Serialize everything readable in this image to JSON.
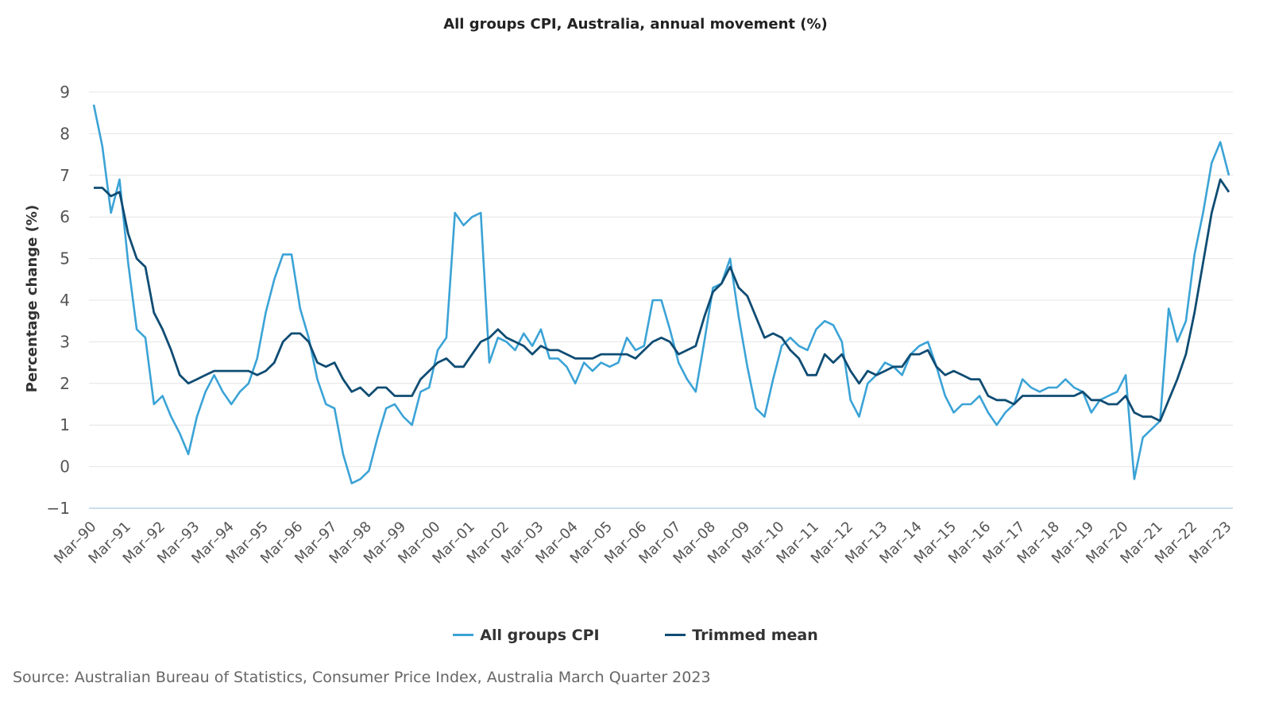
{
  "chart_data": {
    "type": "line",
    "title": "All groups CPI, Australia, annual movement (%)",
    "ylabel": "Percentage change (%)",
    "xlabel": "",
    "ylim": [
      -1,
      9
    ],
    "y_ticks": [
      "9",
      "8",
      "7",
      "6",
      "5",
      "4",
      "3",
      "2",
      "1",
      "0",
      "−1"
    ],
    "x_tick_labels": [
      "Mar–90",
      "Mar–91",
      "Mar–92",
      "Mar–93",
      "Mar–94",
      "Mar–95",
      "Mar–96",
      "Mar–97",
      "Mar–98",
      "Mar–99",
      "Mar–00",
      "Mar–01",
      "Mar–02",
      "Mar–03",
      "Mar–04",
      "Mar–05",
      "Mar–06",
      "Mar–07",
      "Mar–08",
      "Mar–09",
      "Mar–10",
      "Mar–11",
      "Mar–12",
      "Mar–13",
      "Mar–14",
      "Mar–15",
      "Mar–16",
      "Mar–17",
      "Mar–18",
      "Mar–19",
      "Mar–20",
      "Mar–21",
      "Mar–22",
      "Mar–23"
    ],
    "x_start": "Mar-90",
    "x_frequency": "quarterly",
    "grid": true,
    "legend_position": "bottom",
    "series": [
      {
        "name": "All groups CPI",
        "color": "#3ba3d6",
        "values": [
          8.7,
          7.7,
          6.1,
          6.9,
          4.9,
          3.3,
          3.1,
          1.5,
          1.7,
          1.2,
          0.8,
          0.3,
          1.2,
          1.8,
          2.2,
          1.8,
          1.5,
          1.8,
          2.0,
          2.6,
          3.7,
          4.5,
          5.1,
          5.1,
          3.8,
          3.1,
          2.1,
          1.5,
          1.4,
          0.3,
          -0.4,
          -0.3,
          -0.1,
          0.7,
          1.4,
          1.5,
          1.2,
          1.0,
          1.8,
          1.9,
          2.8,
          3.1,
          6.1,
          5.8,
          6.0,
          6.1,
          2.5,
          3.1,
          3.0,
          2.8,
          3.2,
          2.9,
          3.3,
          2.6,
          2.6,
          2.4,
          2.0,
          2.5,
          2.3,
          2.5,
          2.4,
          2.5,
          3.1,
          2.8,
          2.9,
          4.0,
          4.0,
          3.3,
          2.5,
          2.1,
          1.8,
          3.0,
          4.3,
          4.4,
          5.0,
          3.6,
          2.4,
          1.4,
          1.2,
          2.1,
          2.9,
          3.1,
          2.9,
          2.8,
          3.3,
          3.5,
          3.4,
          3.0,
          1.6,
          1.2,
          2.0,
          2.2,
          2.5,
          2.4,
          2.2,
          2.7,
          2.9,
          3.0,
          2.4,
          1.7,
          1.3,
          1.5,
          1.5,
          1.7,
          1.3,
          1.0,
          1.3,
          1.5,
          2.1,
          1.9,
          1.8,
          1.9,
          1.9,
          2.1,
          1.9,
          1.8,
          1.3,
          1.6,
          1.7,
          1.8,
          2.2,
          -0.3,
          0.7,
          0.9,
          1.1,
          3.8,
          3.0,
          3.5,
          5.1,
          6.1,
          7.3,
          7.8,
          7.0
        ]
      },
      {
        "name": "Trimmed mean",
        "color": "#0f4c73",
        "values": [
          6.7,
          6.7,
          6.5,
          6.6,
          5.6,
          5.0,
          4.8,
          3.7,
          3.3,
          2.8,
          2.2,
          2.0,
          2.1,
          2.2,
          2.3,
          2.3,
          2.3,
          2.3,
          2.3,
          2.2,
          2.3,
          2.5,
          3.0,
          3.2,
          3.2,
          3.0,
          2.5,
          2.4,
          2.5,
          2.1,
          1.8,
          1.9,
          1.7,
          1.9,
          1.9,
          1.7,
          1.7,
          1.7,
          2.1,
          2.3,
          2.5,
          2.6,
          2.4,
          2.4,
          2.7,
          3.0,
          3.1,
          3.3,
          3.1,
          3.0,
          2.9,
          2.7,
          2.9,
          2.8,
          2.8,
          2.7,
          2.6,
          2.6,
          2.6,
          2.7,
          2.7,
          2.7,
          2.7,
          2.6,
          2.8,
          3.0,
          3.1,
          3.0,
          2.7,
          2.8,
          2.9,
          3.6,
          4.2,
          4.4,
          4.8,
          4.3,
          4.1,
          3.6,
          3.1,
          3.2,
          3.1,
          2.8,
          2.6,
          2.2,
          2.2,
          2.7,
          2.5,
          2.7,
          2.3,
          2.0,
          2.3,
          2.2,
          2.3,
          2.4,
          2.4,
          2.7,
          2.7,
          2.8,
          2.4,
          2.2,
          2.3,
          2.2,
          2.1,
          2.1,
          1.7,
          1.6,
          1.6,
          1.5,
          1.7,
          1.7,
          1.7,
          1.7,
          1.7,
          1.7,
          1.7,
          1.8,
          1.6,
          1.6,
          1.5,
          1.5,
          1.7,
          1.3,
          1.2,
          1.2,
          1.1,
          1.6,
          2.1,
          2.7,
          3.7,
          4.9,
          6.1,
          6.9,
          6.6
        ]
      }
    ]
  },
  "source": "Source: Australian Bureau of Statistics, Consumer Price Index, Australia March Quarter 2023"
}
